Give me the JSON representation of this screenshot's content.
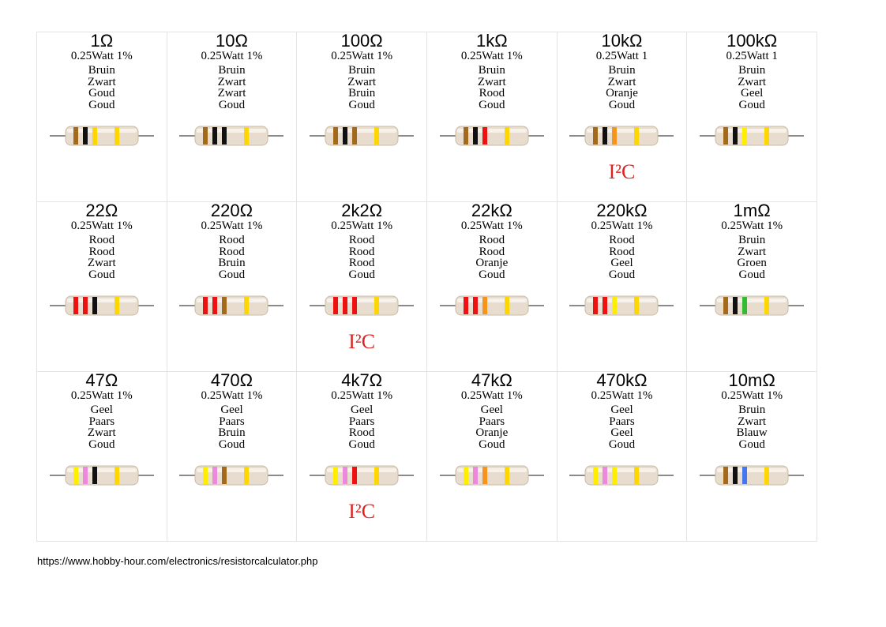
{
  "colors": {
    "Zwart": "#111111",
    "Bruin": "#a36a1c",
    "Rood": "#ee1111",
    "Oranje": "#f7941d",
    "Geel": "#ffee00",
    "Groen": "#33bb33",
    "Blauw": "#4477ee",
    "Paars": "#ee88dd",
    "Goud": "#ffd700",
    "body": "#e7dccd",
    "lead": "#8a8a8a",
    "i2c": "#dd2222"
  },
  "resistors": [
    {
      "value": "1Ω",
      "spec": "0.25Watt 1%",
      "bands": [
        "Bruin",
        "Zwart",
        "Goud",
        "Goud"
      ],
      "i2c": ""
    },
    {
      "value": "10Ω",
      "spec": "0.25Watt 1%",
      "bands": [
        "Bruin",
        "Zwart",
        "Zwart",
        "Goud"
      ],
      "i2c": ""
    },
    {
      "value": "100Ω",
      "spec": "0.25Watt 1%",
      "bands": [
        "Bruin",
        "Zwart",
        "Bruin",
        "Goud"
      ],
      "i2c": ""
    },
    {
      "value": "1kΩ",
      "spec": "0.25Watt 1%",
      "bands": [
        "Bruin",
        "Zwart",
        "Rood",
        "Goud"
      ],
      "i2c": ""
    },
    {
      "value": "10kΩ",
      "spec": "0.25Watt 1",
      "bands": [
        "Bruin",
        "Zwart",
        "Oranje",
        "Goud"
      ],
      "i2c": "I²C"
    },
    {
      "value": "100kΩ",
      "spec": "0.25Watt 1",
      "bands": [
        "Bruin",
        "Zwart",
        "Geel",
        "Goud"
      ],
      "i2c": ""
    },
    {
      "value": "22Ω",
      "spec": "0.25Watt 1%",
      "bands": [
        "Rood",
        "Rood",
        "Zwart",
        "Goud"
      ],
      "i2c": ""
    },
    {
      "value": "220Ω",
      "spec": "0.25Watt 1%",
      "bands": [
        "Rood",
        "Rood",
        "Bruin",
        "Goud"
      ],
      "i2c": ""
    },
    {
      "value": "2k2Ω",
      "spec": "0.25Watt 1%",
      "bands": [
        "Rood",
        "Rood",
        "Rood",
        "Goud"
      ],
      "i2c": "I²C"
    },
    {
      "value": "22kΩ",
      "spec": "0.25Watt 1%",
      "bands": [
        "Rood",
        "Rood",
        "Oranje",
        "Goud"
      ],
      "i2c": ""
    },
    {
      "value": "220kΩ",
      "spec": "0.25Watt 1%",
      "bands": [
        "Rood",
        "Rood",
        "Geel",
        "Goud"
      ],
      "i2c": ""
    },
    {
      "value": "1mΩ",
      "spec": "0.25Watt 1%",
      "bands": [
        "Bruin",
        "Zwart",
        "Groen",
        "Goud"
      ],
      "i2c": ""
    },
    {
      "value": "47Ω",
      "spec": "0.25Watt 1%",
      "bands": [
        "Geel",
        "Paars",
        "Zwart",
        "Goud"
      ],
      "i2c": ""
    },
    {
      "value": "470Ω",
      "spec": "0.25Watt 1%",
      "bands": [
        "Geel",
        "Paars",
        "Bruin",
        "Goud"
      ],
      "i2c": ""
    },
    {
      "value": "4k7Ω",
      "spec": "0.25Watt 1%",
      "bands": [
        "Geel",
        "Paars",
        "Rood",
        "Goud"
      ],
      "i2c": "I²C"
    },
    {
      "value": "47kΩ",
      "spec": "0.25Watt 1%",
      "bands": [
        "Geel",
        "Paars",
        "Oranje",
        "Goud"
      ],
      "i2c": ""
    },
    {
      "value": "470kΩ",
      "spec": "0.25Watt 1%",
      "bands": [
        "Geel",
        "Paars",
        "Geel",
        "Goud"
      ],
      "i2c": ""
    },
    {
      "value": "10mΩ",
      "spec": "0.25Watt 1%",
      "bands": [
        "Bruin",
        "Zwart",
        "Blauw",
        "Goud"
      ],
      "i2c": ""
    }
  ],
  "footer": {
    "url": "https://www.hobby-hour.com/electronics/resistorcalculator.php"
  }
}
